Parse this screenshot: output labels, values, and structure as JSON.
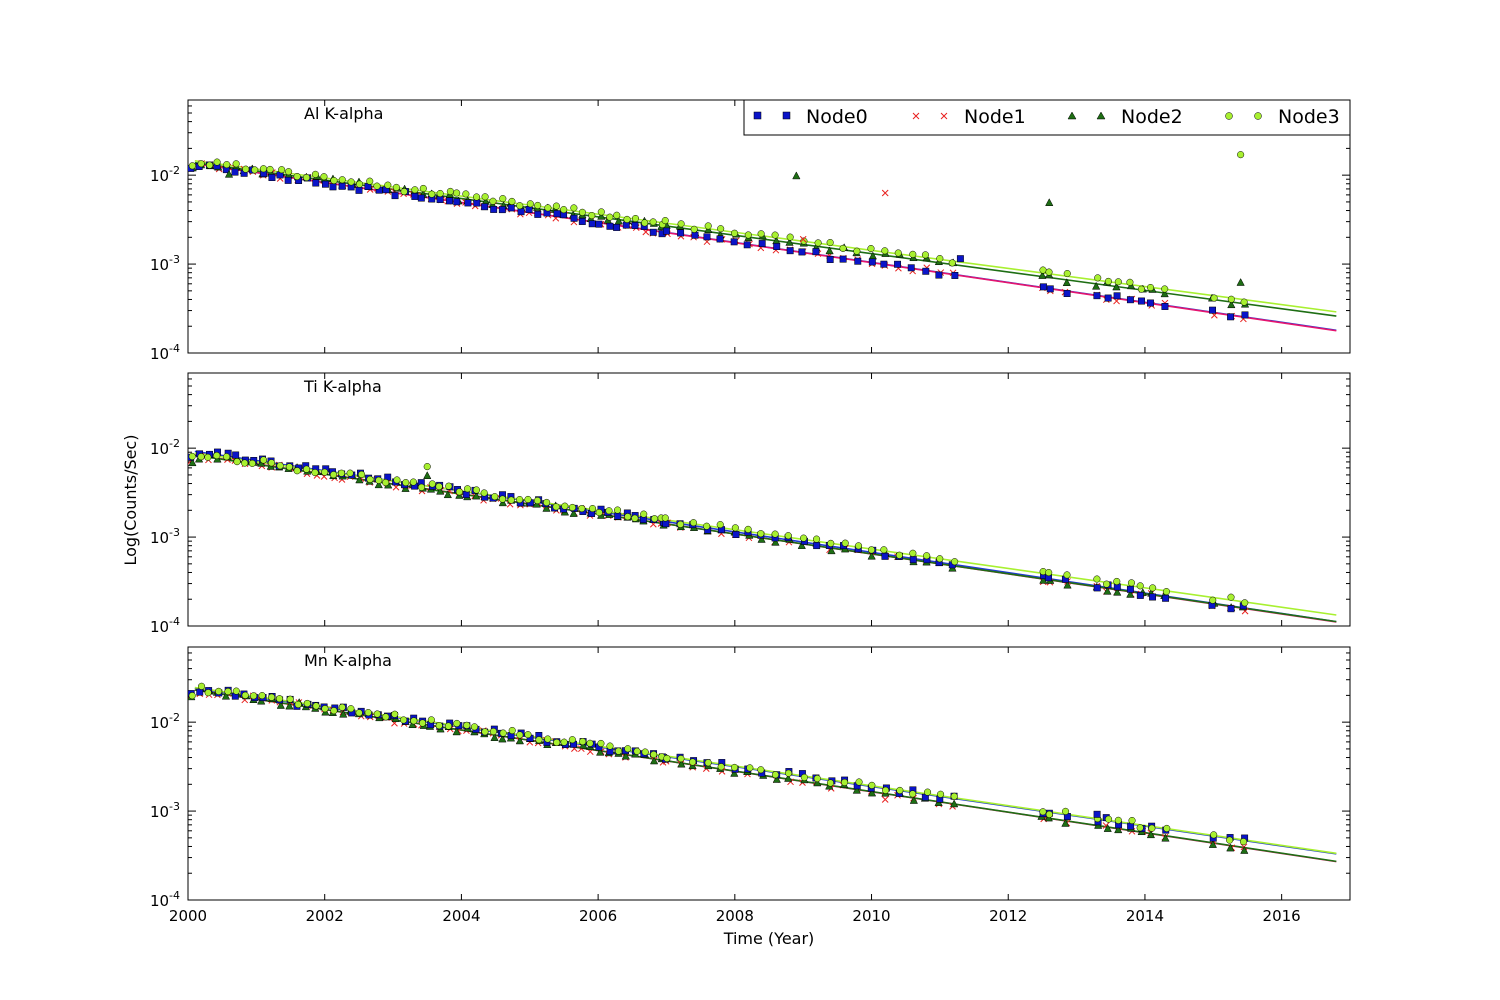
{
  "chart_data": {
    "type": "scatter",
    "xlabel": "Time (Year)",
    "ylabel": "Log(Counts/Sec)",
    "xlim": [
      2000,
      2017
    ],
    "ylim": [
      0.0001,
      0.07
    ],
    "y_scale": "log",
    "x_ticks": [
      "2000",
      "2002",
      "2004",
      "2006",
      "2008",
      "2010",
      "2012",
      "2014",
      "2016"
    ],
    "y_ticks": [
      {
        "base": "10",
        "exp": "-2"
      },
      {
        "base": "10",
        "exp": "-3"
      },
      {
        "base": "10",
        "exp": "-4"
      }
    ],
    "grid": false,
    "legend_position": "top-right",
    "series": [
      {
        "name": "Node0",
        "marker": "square",
        "color": "#0a14c8"
      },
      {
        "name": "Node1",
        "marker": "x",
        "color": "#e8201e"
      },
      {
        "name": "Node2",
        "marker": "triangle",
        "color": "#1e6e14"
      },
      {
        "name": "Node3",
        "marker": "circle",
        "color": "#a8f030"
      }
    ],
    "panels": [
      {
        "title": "Al K-alpha",
        "fits": [
          {
            "series": "Node0",
            "start": [
              2000.1,
              0.0135
            ],
            "end": [
              2016.8,
              0.00018
            ],
            "color": "#1e3cd2"
          },
          {
            "series": "Node1",
            "start": [
              2000.1,
              0.0135
            ],
            "end": [
              2016.8,
              0.000178
            ],
            "color": "#e6146e"
          },
          {
            "series": "Node2",
            "start": [
              2000.1,
              0.0138
            ],
            "end": [
              2016.8,
              0.00026
            ],
            "color": "#1e6e14"
          },
          {
            "series": "Node3",
            "start": [
              2000.1,
              0.0145
            ],
            "end": [
              2016.8,
              0.00029
            ],
            "color": "#a8f030"
          }
        ],
        "outliers": [
          {
            "series": "Node2",
            "x": 2008.9,
            "y": 0.0098
          },
          {
            "series": "Node1",
            "x": 2010.2,
            "y": 0.0063
          },
          {
            "series": "Node2",
            "x": 2012.6,
            "y": 0.0049
          },
          {
            "series": "Node3",
            "x": 2015.4,
            "y": 0.017
          },
          {
            "series": "Node2",
            "x": 2015.4,
            "y": 0.00062
          },
          {
            "series": "Node0",
            "x": 2011.3,
            "y": 0.00115
          },
          {
            "series": "Node1",
            "x": 2009.0,
            "y": 0.0019
          },
          {
            "series": "Node2",
            "x": 2000.6,
            "y": 0.0102
          }
        ]
      },
      {
        "title": "Ti K-alpha",
        "fits": [
          {
            "series": "Node0",
            "start": [
              2000.1,
              0.0092
            ],
            "end": [
              2016.8,
              0.000112
            ],
            "color": "#1e3cd2"
          },
          {
            "series": "Node1",
            "start": [
              2000.1,
              0.0084
            ],
            "end": [
              2016.8,
              0.000111
            ],
            "color": "#e6146e"
          },
          {
            "series": "Node2",
            "start": [
              2000.1,
              0.0083
            ],
            "end": [
              2016.8,
              0.000112
            ],
            "color": "#1e6e14"
          },
          {
            "series": "Node3",
            "start": [
              2000.1,
              0.0088
            ],
            "end": [
              2016.8,
              0.000133
            ],
            "color": "#a8f030"
          }
        ],
        "outliers": [
          {
            "series": "Node3",
            "x": 2003.5,
            "y": 0.0062
          },
          {
            "series": "Node2",
            "x": 2003.5,
            "y": 0.0049
          }
        ]
      },
      {
        "title": "Mn K-alpha",
        "fits": [
          {
            "series": "Node0",
            "start": [
              2000.1,
              0.024
            ],
            "end": [
              2016.8,
              0.00033
            ],
            "color": "#1e3cd2"
          },
          {
            "series": "Node1",
            "start": [
              2000.1,
              0.023
            ],
            "end": [
              2016.8,
              0.00027
            ],
            "color": "#e6146e"
          },
          {
            "series": "Node2",
            "start": [
              2000.1,
              0.023
            ],
            "end": [
              2016.8,
              0.000272
            ],
            "color": "#1e6e14"
          },
          {
            "series": "Node3",
            "start": [
              2000.1,
              0.0245
            ],
            "end": [
              2016.8,
              0.000335
            ],
            "color": "#a8f030"
          }
        ],
        "outliers": [
          {
            "series": "Node0",
            "x": 2013.3,
            "y": 0.00092
          },
          {
            "series": "Node1",
            "x": 2010.2,
            "y": 0.00135
          }
        ]
      }
    ]
  }
}
